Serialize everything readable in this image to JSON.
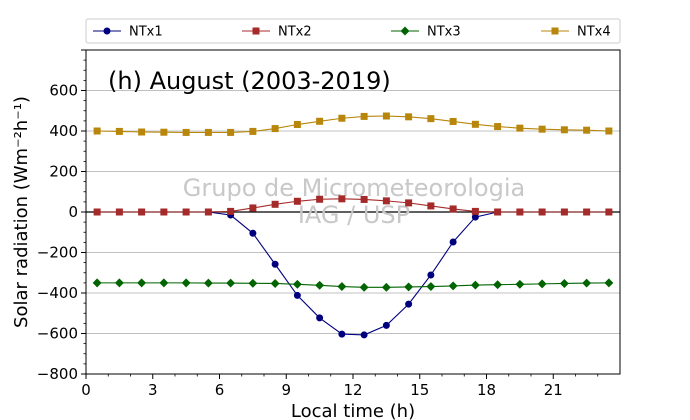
{
  "chart_data": {
    "type": "line",
    "title": "(h) August (2003-2019)",
    "xlabel": "Local time (h)",
    "ylabel": "Solar radiation (Wm⁻²h⁻¹)",
    "watermark": [
      "Grupo de Micrometeorologia",
      "IAG / USP"
    ],
    "xlim": [
      0,
      24
    ],
    "ylim": [
      -800,
      800
    ],
    "xticks": [
      "0",
      "3",
      "6",
      "9",
      "12",
      "15",
      "18",
      "21"
    ],
    "yticks": [
      "−800",
      "−600",
      "−400",
      "−200",
      "0",
      "200",
      "400",
      "600"
    ],
    "grid": "horizontal",
    "legend_position": "top, above plot",
    "x": [
      0.5,
      1.5,
      2.5,
      3.5,
      4.5,
      5.5,
      6.5,
      7.5,
      8.5,
      9.5,
      10.5,
      11.5,
      12.5,
      13.5,
      14.5,
      15.5,
      16.5,
      17.5,
      18.5,
      19.5,
      20.5,
      21.5,
      22.5,
      23.5
    ],
    "series": [
      {
        "name": "NTx1",
        "color": "#00007f",
        "marker": "circle",
        "values": [
          0,
          0,
          0,
          0,
          0,
          0,
          -15,
          -105,
          -258,
          -412,
          -523,
          -603,
          -607,
          -560,
          -455,
          -311,
          -148,
          -25,
          0,
          0,
          0,
          0,
          0,
          0
        ]
      },
      {
        "name": "NTx2",
        "color": "#a52a2a",
        "marker": "square",
        "values": [
          0,
          0,
          0,
          0,
          0,
          0,
          3,
          20,
          38,
          53,
          63,
          65,
          62,
          55,
          45,
          30,
          15,
          3,
          0,
          0,
          0,
          0,
          0,
          0
        ]
      },
      {
        "name": "NTx3",
        "color": "#006400",
        "marker": "diamond",
        "values": [
          -350,
          -350,
          -350,
          -350,
          -350,
          -351,
          -351,
          -352,
          -353,
          -357,
          -362,
          -368,
          -372,
          -372,
          -370,
          -368,
          -365,
          -361,
          -359,
          -357,
          -355,
          -353,
          -351,
          -350
        ]
      },
      {
        "name": "NTx4",
        "color": "#b8860b",
        "marker": "square",
        "values": [
          400,
          398,
          395,
          394,
          393,
          393,
          393,
          398,
          412,
          432,
          448,
          463,
          472,
          474,
          470,
          461,
          447,
          433,
          422,
          414,
          409,
          406,
          404,
          400
        ]
      }
    ]
  }
}
